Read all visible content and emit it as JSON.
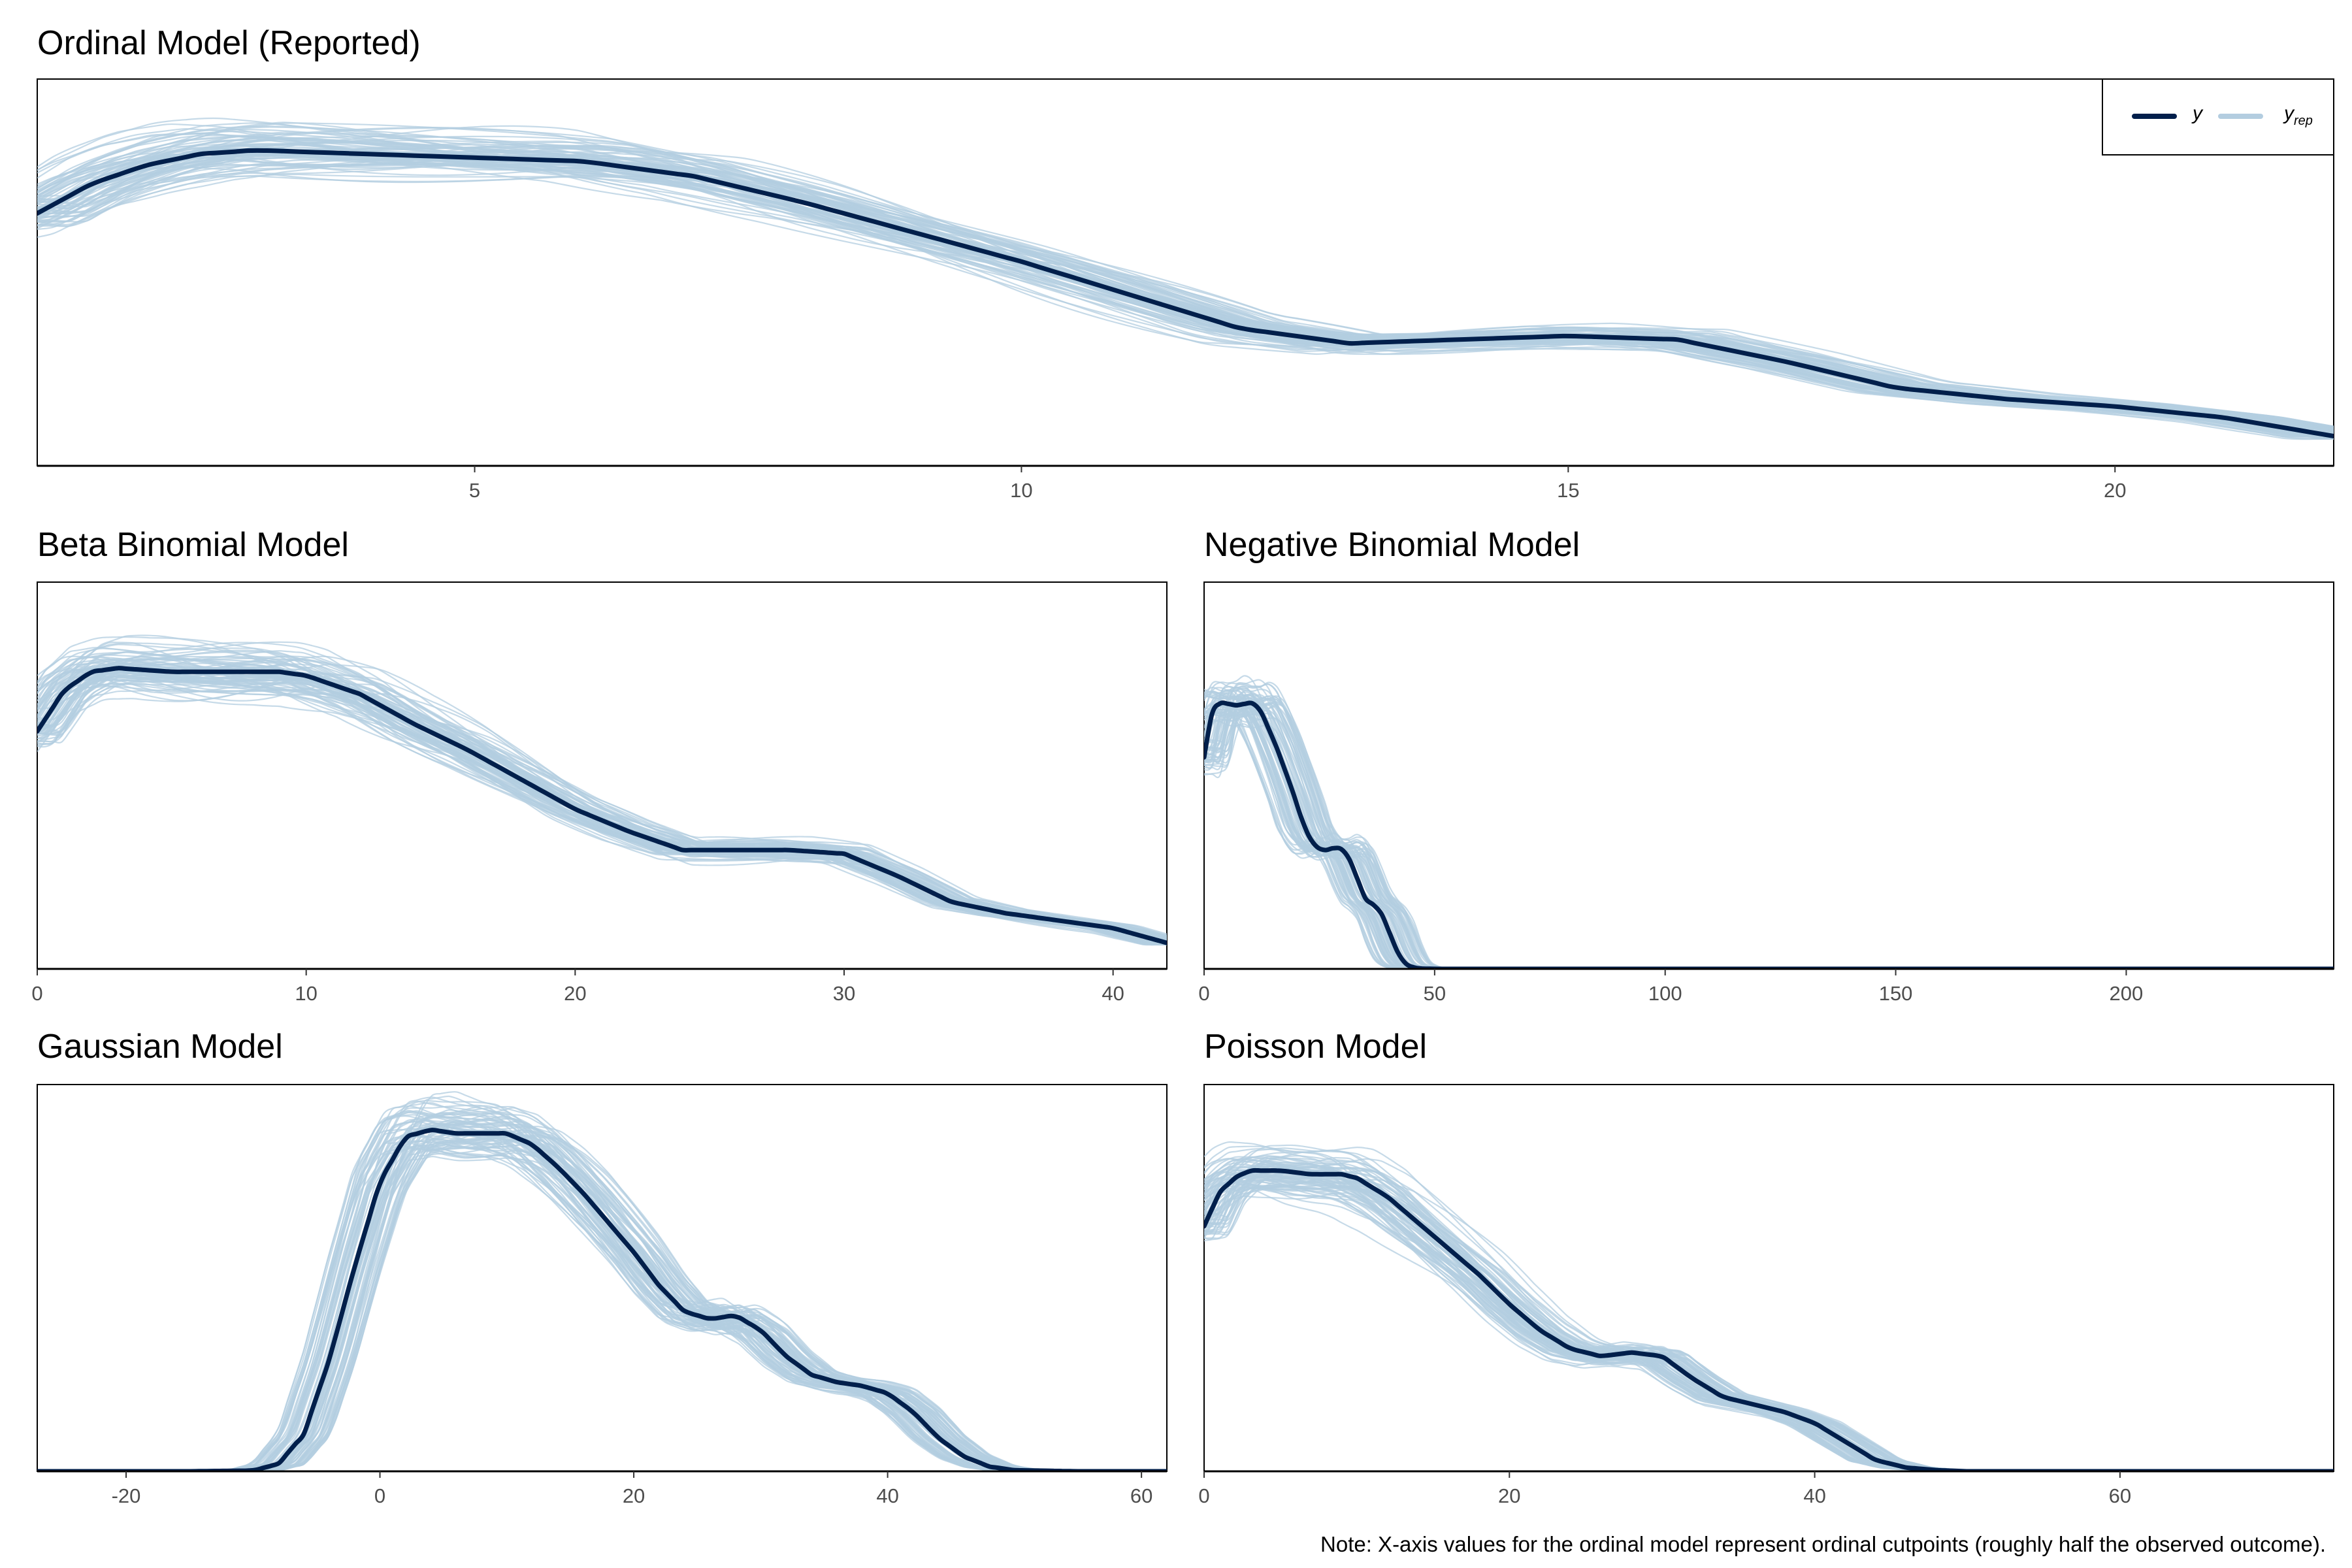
{
  "note": "Note: X-axis values for the ordinal model represent ordinal cutpoints (roughly half the observed outcome).",
  "colors": {
    "y": "#011f4b",
    "yrep": "#b3cde0",
    "frame": "#000000",
    "tick_text": "#4d4d4d"
  },
  "legend": {
    "y_label": "y",
    "yrep_label": "y",
    "yrep_sub": "rep",
    "placement": "top-right"
  },
  "chart_data": [
    {
      "id": "ordinal",
      "title": "Ordinal Model (Reported)",
      "type": "line",
      "xlim": [
        1,
        22
      ],
      "xticks": [
        5,
        10,
        15,
        20
      ],
      "ylim": [
        0,
        1
      ],
      "n_rep": 80,
      "show_legend": true,
      "series": [
        {
          "name": "y",
          "x": [
            1,
            1.5,
            2,
            2.5,
            3,
            4,
            5,
            6,
            7,
            8,
            9,
            10,
            11,
            12,
            13,
            14,
            15,
            16,
            17,
            18,
            19,
            20,
            21,
            22
          ],
          "values": [
            0.68,
            0.76,
            0.81,
            0.84,
            0.85,
            0.84,
            0.83,
            0.82,
            0.78,
            0.71,
            0.63,
            0.55,
            0.46,
            0.37,
            0.33,
            0.34,
            0.35,
            0.34,
            0.28,
            0.21,
            0.18,
            0.16,
            0.13,
            0.08
          ]
        }
      ]
    },
    {
      "id": "beta-binomial",
      "title": "Beta Binomial Model",
      "type": "line",
      "xlim": [
        0,
        42
      ],
      "xticks": [
        0,
        10,
        20,
        30,
        40
      ],
      "ylim": [
        0,
        1
      ],
      "n_rep": 80,
      "show_legend": false,
      "series": [
        {
          "name": "y",
          "x": [
            0,
            1,
            2,
            3,
            5,
            7,
            9,
            10,
            12,
            14,
            16,
            18,
            20,
            22,
            24,
            26,
            28,
            30,
            32,
            34,
            36,
            38,
            40,
            42
          ],
          "values": [
            0.64,
            0.75,
            0.8,
            0.81,
            0.8,
            0.8,
            0.8,
            0.79,
            0.74,
            0.66,
            0.59,
            0.51,
            0.43,
            0.37,
            0.32,
            0.32,
            0.32,
            0.31,
            0.25,
            0.18,
            0.15,
            0.13,
            0.11,
            0.07
          ]
        }
      ]
    },
    {
      "id": "negative-binomial",
      "title": "Negative Binomial Model",
      "type": "line",
      "xlim": [
        0,
        245
      ],
      "xticks": [
        0,
        50,
        100,
        150,
        200
      ],
      "ylim": [
        0,
        1
      ],
      "n_rep": 80,
      "show_legend": false,
      "series": [
        {
          "name": "y",
          "x": [
            0,
            1,
            2,
            4,
            6,
            8,
            10,
            12,
            15,
            18,
            20,
            22,
            25,
            27,
            29,
            31,
            33,
            35,
            37,
            39,
            41,
            43,
            45,
            47,
            50,
            60,
            100,
            150,
            200,
            245
          ],
          "values": [
            0.57,
            0.65,
            0.7,
            0.72,
            0.71,
            0.71,
            0.72,
            0.7,
            0.62,
            0.52,
            0.45,
            0.37,
            0.32,
            0.32,
            0.33,
            0.31,
            0.25,
            0.19,
            0.17,
            0.14,
            0.07,
            0.02,
            0.005,
            0.001,
            0,
            0,
            0,
            0,
            0,
            0
          ]
        }
      ]
    },
    {
      "id": "gaussian",
      "title": "Gaussian Model",
      "type": "line",
      "xlim": [
        -27,
        62
      ],
      "xticks": [
        -20,
        0,
        20,
        40,
        60
      ],
      "ylim": [
        0,
        1
      ],
      "n_rep": 80,
      "show_legend": false,
      "series": [
        {
          "name": "y",
          "x": [
            -27,
            -15,
            -10,
            -8,
            -6,
            -4,
            -2,
            0,
            2,
            4,
            6,
            8,
            10,
            12,
            14,
            16,
            18,
            20,
            22,
            24,
            26,
            28,
            30,
            32,
            34,
            36,
            38,
            40,
            42,
            44,
            46,
            48,
            50,
            55,
            62
          ],
          "values": [
            0,
            0,
            0.002,
            0.02,
            0.1,
            0.3,
            0.55,
            0.78,
            0.9,
            0.92,
            0.91,
            0.91,
            0.91,
            0.88,
            0.82,
            0.75,
            0.67,
            0.59,
            0.5,
            0.43,
            0.41,
            0.42,
            0.38,
            0.31,
            0.26,
            0.24,
            0.23,
            0.21,
            0.16,
            0.09,
            0.04,
            0.013,
            0.003,
            0,
            0
          ]
        }
      ]
    },
    {
      "id": "poisson",
      "title": "Poisson Model",
      "type": "line",
      "xlim": [
        0,
        74
      ],
      "xticks": [
        0,
        20,
        40,
        60
      ],
      "ylim": [
        0,
        1
      ],
      "n_rep": 80,
      "show_legend": false,
      "series": [
        {
          "name": "y",
          "x": [
            0,
            1,
            2,
            3,
            5,
            7,
            9,
            10,
            12,
            14,
            16,
            18,
            20,
            22,
            24,
            26,
            28,
            30,
            32,
            34,
            36,
            38,
            40,
            42,
            44,
            46,
            48,
            50,
            55,
            60,
            74
          ],
          "values": [
            0.66,
            0.75,
            0.79,
            0.81,
            0.81,
            0.8,
            0.8,
            0.79,
            0.74,
            0.67,
            0.6,
            0.53,
            0.45,
            0.38,
            0.33,
            0.31,
            0.32,
            0.31,
            0.25,
            0.2,
            0.18,
            0.16,
            0.13,
            0.08,
            0.03,
            0.01,
            0.003,
            0,
            0,
            0,
            0
          ]
        }
      ]
    }
  ]
}
